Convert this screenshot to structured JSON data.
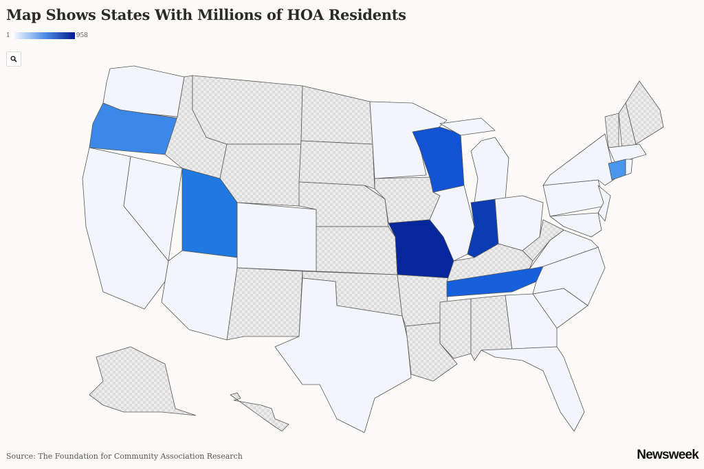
{
  "title": "Map Shows States With Millions of HOA Residents",
  "legend": {
    "min": "1",
    "max": "958",
    "color_low": "#f2f6fd",
    "color_high": "#021c8c"
  },
  "zoom_icon": "search-icon",
  "no_data_style": "gray-checker-pattern",
  "base_color": "#f2f5fc",
  "states": [
    {
      "id": "WA",
      "fill": "#f2f5fc"
    },
    {
      "id": "OR",
      "fill": "#3b88e9"
    },
    {
      "id": "CA",
      "fill": "#f2f5fc"
    },
    {
      "id": "NV",
      "fill": "#f2f5fc"
    },
    {
      "id": "ID",
      "fill": "nodata"
    },
    {
      "id": "MT",
      "fill": "nodata"
    },
    {
      "id": "WY",
      "fill": "nodata"
    },
    {
      "id": "UT",
      "fill": "#1f79e0"
    },
    {
      "id": "CO",
      "fill": "#f2f5fc"
    },
    {
      "id": "AZ",
      "fill": "#f2f5fc"
    },
    {
      "id": "NM",
      "fill": "nodata"
    },
    {
      "id": "ND",
      "fill": "nodata"
    },
    {
      "id": "SD",
      "fill": "nodata"
    },
    {
      "id": "NE",
      "fill": "nodata"
    },
    {
      "id": "KS",
      "fill": "nodata"
    },
    {
      "id": "OK",
      "fill": "nodata"
    },
    {
      "id": "TX",
      "fill": "#f2f5fc"
    },
    {
      "id": "MN",
      "fill": "#f2f5fc"
    },
    {
      "id": "IA",
      "fill": "nodata"
    },
    {
      "id": "MO",
      "fill": "#06269b"
    },
    {
      "id": "AR",
      "fill": "nodata"
    },
    {
      "id": "LA",
      "fill": "nodata"
    },
    {
      "id": "WI",
      "fill": "#1253d3"
    },
    {
      "id": "IL",
      "fill": "#f2f5fc"
    },
    {
      "id": "MI",
      "fill": "#f2f5fc"
    },
    {
      "id": "MI-UP",
      "fill": "#f2f5fc"
    },
    {
      "id": "IN",
      "fill": "#0b3cb4"
    },
    {
      "id": "OH",
      "fill": "#f2f5fc"
    },
    {
      "id": "KY",
      "fill": "nodata"
    },
    {
      "id": "TN",
      "fill": "#1660dc"
    },
    {
      "id": "MS",
      "fill": "nodata"
    },
    {
      "id": "AL",
      "fill": "nodata"
    },
    {
      "id": "GA",
      "fill": "#f2f5fc"
    },
    {
      "id": "FL",
      "fill": "#f2f5fc"
    },
    {
      "id": "SC",
      "fill": "#f2f5fc"
    },
    {
      "id": "NC",
      "fill": "#f2f5fc"
    },
    {
      "id": "VA",
      "fill": "#f2f5fc"
    },
    {
      "id": "WV",
      "fill": "nodata"
    },
    {
      "id": "PA",
      "fill": "#f2f5fc"
    },
    {
      "id": "NY",
      "fill": "#f2f5fc"
    },
    {
      "id": "NJ",
      "fill": "#f2f5fc"
    },
    {
      "id": "MD",
      "fill": "#f2f5fc"
    },
    {
      "id": "VT",
      "fill": "nodata"
    },
    {
      "id": "NH",
      "fill": "nodata"
    },
    {
      "id": "ME",
      "fill": "nodata"
    },
    {
      "id": "MA",
      "fill": "#f2f5fc"
    },
    {
      "id": "CT",
      "fill": "#4a96ee"
    },
    {
      "id": "RI",
      "fill": "#f2f5fc"
    },
    {
      "id": "AK",
      "fill": "nodata"
    },
    {
      "id": "HI",
      "fill": "nodata"
    }
  ],
  "source": "Source: The Foundation for Community Association Research",
  "brand": "Newsweek"
}
